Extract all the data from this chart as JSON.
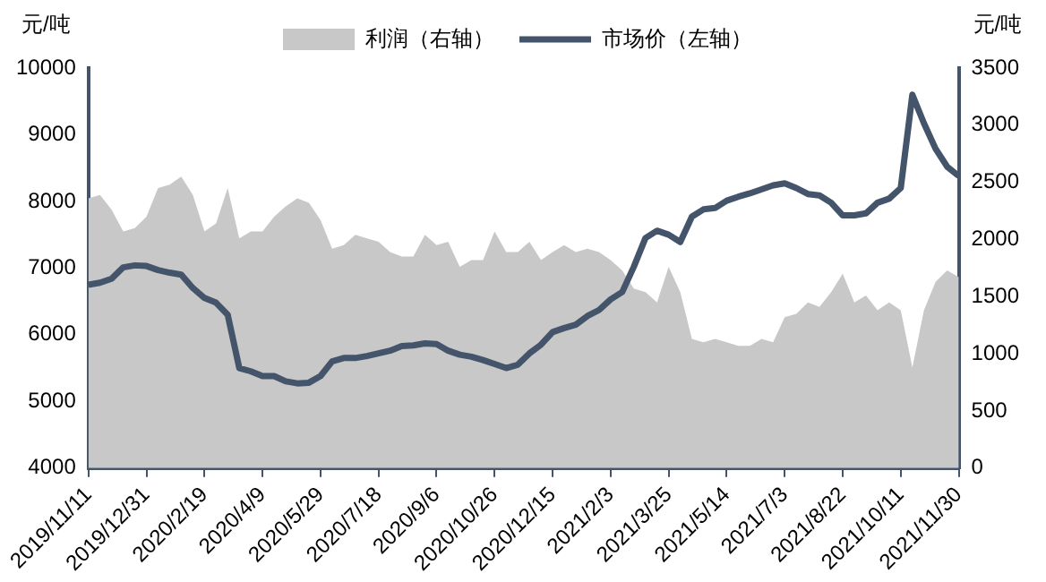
{
  "chart_data": {
    "type": "line",
    "ylabel": "元/吨",
    "y2label": "元/吨",
    "categories": [
      "2019/11/11",
      null,
      null,
      null,
      null,
      "2019/12/31",
      null,
      null,
      null,
      null,
      "2020/2/19",
      null,
      null,
      null,
      null,
      "2020/4/9",
      null,
      null,
      null,
      null,
      "2020/5/29",
      null,
      null,
      null,
      null,
      "2020/7/18",
      null,
      null,
      null,
      null,
      "2020/9/6",
      null,
      null,
      null,
      null,
      "2020/10/26",
      null,
      null,
      null,
      null,
      "2020/12/15",
      null,
      null,
      null,
      null,
      "2021/2/3",
      null,
      null,
      null,
      null,
      "2021/3/25",
      null,
      null,
      null,
      null,
      "2021/5/14",
      null,
      null,
      null,
      null,
      "2021/7/3",
      null,
      null,
      null,
      null,
      "2021/8/22",
      null,
      null,
      null,
      null,
      "2021/10/11",
      null,
      null,
      null,
      null,
      "2021/11/30"
    ],
    "series": [
      {
        "name": "利润（右轴）",
        "type": "area",
        "axis": "y2",
        "color": "#c8c8c8",
        "values": [
          2360,
          2390,
          2260,
          2070,
          2100,
          2200,
          2450,
          2480,
          2550,
          2390,
          2070,
          2140,
          2450,
          2010,
          2070,
          2070,
          2200,
          2290,
          2360,
          2320,
          2170,
          1920,
          1950,
          2040,
          2010,
          1980,
          1890,
          1850,
          1850,
          2040,
          1950,
          1980,
          1760,
          1820,
          1820,
          2070,
          1890,
          1890,
          1980,
          1820,
          1890,
          1950,
          1890,
          1920,
          1890,
          1820,
          1730,
          1570,
          1540,
          1450,
          1760,
          1540,
          1130,
          1100,
          1130,
          1100,
          1070,
          1070,
          1130,
          1100,
          1320,
          1350,
          1450,
          1410,
          1540,
          1700,
          1450,
          1510,
          1380,
          1450,
          1380,
          880,
          1380,
          1630,
          1730,
          1670
        ]
      },
      {
        "name": "市场价（左轴）",
        "color": "#44546a",
        "values": [
          6750,
          6780,
          6840,
          7010,
          7040,
          7030,
          6970,
          6930,
          6900,
          6700,
          6550,
          6480,
          6300,
          5500,
          5450,
          5380,
          5380,
          5300,
          5270,
          5280,
          5380,
          5600,
          5650,
          5650,
          5680,
          5720,
          5760,
          5830,
          5840,
          5870,
          5860,
          5760,
          5700,
          5670,
          5620,
          5560,
          5500,
          5550,
          5720,
          5850,
          6040,
          6100,
          6150,
          6280,
          6370,
          6530,
          6640,
          7020,
          7450,
          7560,
          7500,
          7390,
          7770,
          7880,
          7900,
          8010,
          8070,
          8120,
          8180,
          8240,
          8270,
          8200,
          8110,
          8090,
          7980,
          7790,
          7790,
          7820,
          7980,
          8040,
          8200,
          9600,
          9170,
          8790,
          8520,
          8380
        ]
      }
    ],
    "ylim": [
      4000,
      10000
    ],
    "yticks": [
      4000,
      5000,
      6000,
      7000,
      8000,
      9000,
      10000
    ],
    "y2lim": [
      0,
      3500
    ],
    "y2ticks": [
      0,
      500,
      1000,
      1500,
      2000,
      2500,
      3000,
      3500
    ],
    "grid": false,
    "legend": "top",
    "marker": "none",
    "line_style": "solid"
  }
}
